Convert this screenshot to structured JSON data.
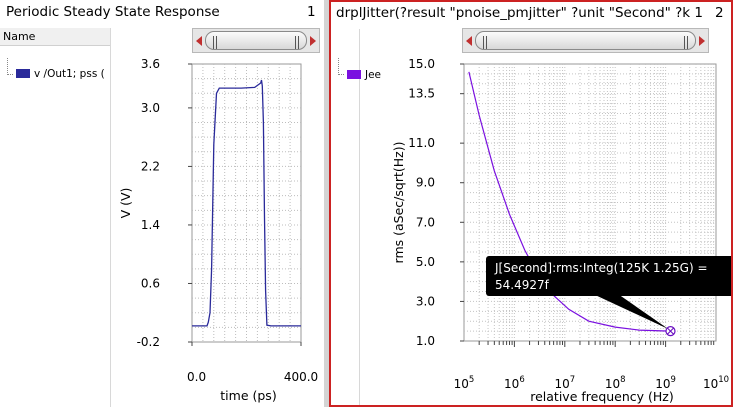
{
  "panel1": {
    "title": "Periodic Steady State Response",
    "number": "1",
    "legend_header": "Name",
    "legend_item": "v /Out1; pss (",
    "legend_color": "#2a2a9a"
  },
  "panel2": {
    "title": "drplJitter(?result \"pnoise_pmjitter\" ?unit \"Second\" ?k 1",
    "number": "2",
    "legend_header": "Name",
    "legend_item": "Jee",
    "legend_color": "#7a10e0"
  },
  "chart_data": [
    {
      "type": "line",
      "title": "",
      "xlabel": "time (ps)",
      "ylabel": "V (V)",
      "xlim": [
        0,
        400
      ],
      "ylim": [
        -0.2,
        3.6
      ],
      "xticks": [
        "0.0",
        "400.0"
      ],
      "yticks": [
        "3.6",
        "3.0",
        "2.2",
        "1.4",
        "0.6",
        "-0.2"
      ],
      "grid": true,
      "series": [
        {
          "name": "v /Out1; pss (",
          "color": "#2a2a9a",
          "x": [
            0,
            55,
            60,
            66,
            72,
            80,
            90,
            100,
            130,
            180,
            230,
            252,
            255,
            258,
            262,
            266,
            270,
            275,
            290,
            320,
            400
          ],
          "y": [
            0.02,
            0.02,
            0.07,
            0.2,
            0.8,
            2.5,
            3.2,
            3.27,
            3.27,
            3.27,
            3.28,
            3.34,
            3.38,
            3.3,
            2.8,
            1.5,
            0.5,
            0.03,
            0.02,
            0.02,
            0.02
          ]
        }
      ]
    },
    {
      "type": "line",
      "title": "",
      "xlabel": "relative frequency (Hz)",
      "ylabel": "rms (aSec/sqrt(Hz))",
      "xscale": "log",
      "xlim": [
        100000,
        10000000000
      ],
      "ylim": [
        1.0,
        15.0
      ],
      "xticks": [
        "10^5",
        "10^6",
        "10^7",
        "10^8",
        "10^9",
        "10^10"
      ],
      "yticks": [
        "15.0",
        "13.5",
        "11.0",
        "9.0",
        "7.0",
        "5.0",
        "3.0",
        "1.0"
      ],
      "grid": true,
      "series": [
        {
          "name": "Jee",
          "color": "#7a10e0",
          "x": [
            125000,
            200000,
            400000,
            800000,
            1600000,
            3000000,
            6000000,
            12000000,
            30000000,
            100000000,
            300000000,
            1250000000
          ],
          "y": [
            14.6,
            12.4,
            9.6,
            7.4,
            5.6,
            4.3,
            3.3,
            2.6,
            2.0,
            1.7,
            1.55,
            1.5
          ]
        }
      ],
      "annotation": {
        "line1": "J[Second]:rms:Integ(125K 1.25G) =",
        "line2": "54.4927f",
        "x": 1250000000,
        "y": 1.5
      }
    }
  ]
}
